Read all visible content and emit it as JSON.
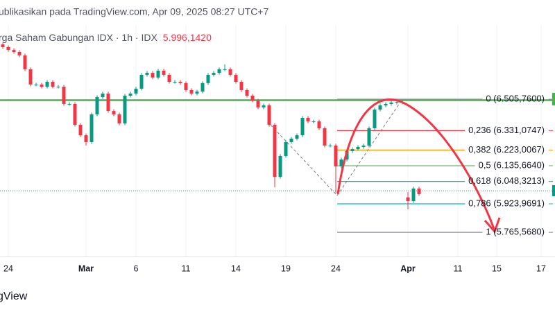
{
  "header": {
    "published": "ublikasikan pada TradingView.com, Apr 09, 2025 08:27 UTC+7",
    "symbol": "rga Saham Gabungan IDX · 1h · IDX",
    "footer": "gView"
  },
  "chart_data": {
    "type": "candlestick",
    "last_price": {
      "value": 5996.142,
      "label": "5.996,1420"
    },
    "up_color": "#089981",
    "down_color": "#f23645",
    "ylim": [
      5631,
      6922
    ],
    "horizontal_line": {
      "price": 6500,
      "color": "#4caf50"
    },
    "fib_levels": [
      {
        "label": "0 (6.505,7600)",
        "price": 6505.76,
        "color": "#9598a1"
      },
      {
        "label": "0,236 (6.331,0747)",
        "price": 6331.0747,
        "color": "#f23645"
      },
      {
        "label": "0,382 (6.223,0067)",
        "price": 6223.0067,
        "color": "#ff9800"
      },
      {
        "label": "0,5 (6.135,6640)",
        "price": 6135.664,
        "color": "#4caf50"
      },
      {
        "label": "0,618 (6.048,3213)",
        "price": 6048.3213,
        "color": "#089981"
      },
      {
        "label": "0,786 (5.923,9691)",
        "price": 5923.9691,
        "color": "#00bcd4"
      },
      {
        "label": "1 (5.765,5680)",
        "price": 5765.568,
        "color": "#787b86"
      }
    ],
    "categories": [
      null,
      "24",
      null,
      null,
      null,
      null,
      null,
      null,
      null,
      null,
      null,
      null,
      null,
      null,
      null,
      "Mar",
      null,
      null,
      null,
      null,
      null,
      null,
      null,
      null,
      "6",
      null,
      null,
      null,
      null,
      null,
      null,
      null,
      null,
      "11",
      null,
      null,
      null,
      null,
      null,
      null,
      null,
      null,
      "14",
      null,
      null,
      null,
      null,
      null,
      null,
      null,
      null,
      "19",
      null,
      null,
      null,
      null,
      null,
      null,
      null,
      null,
      "24",
      null,
      null,
      null,
      null,
      null,
      null,
      null,
      null,
      null,
      null,
      null,
      null,
      "Apr",
      null,
      null,
      null,
      null,
      null,
      null,
      null,
      null,
      "11",
      null,
      null,
      null,
      null,
      null,
      null,
      "15",
      null,
      null,
      null,
      null,
      null,
      null,
      null,
      "17",
      null,
      null
    ],
    "ohlc": [
      [
        6810,
        6820,
        6785,
        6795
      ],
      [
        6795,
        6805,
        6769,
        6779
      ],
      [
        6779,
        6789,
        6758,
        6768
      ],
      [
        6768,
        6778,
        6739,
        6749
      ],
      [
        6749,
        6759,
        6662,
        6672
      ],
      [
        6672,
        6682,
        6577,
        6587
      ],
      [
        6587,
        6597,
        6577,
        6587
      ],
      [
        6587,
        6597,
        6565,
        6575
      ],
      [
        6575,
        6612,
        6565,
        6602
      ],
      [
        6602,
        6612,
        6565,
        6575
      ],
      [
        6575,
        6585,
        6565,
        6575
      ],
      [
        6575,
        6585,
        6469,
        6479
      ],
      [
        6479,
        6489,
        6469,
        6479
      ],
      [
        6479,
        6489,
        6353,
        6363
      ],
      [
        6363,
        6373,
        6295,
        6305
      ],
      [
        6305,
        6315,
        6248,
        6267
      ],
      [
        6267,
        6431,
        6257,
        6421
      ],
      [
        6421,
        6527,
        6411,
        6517
      ],
      [
        6517,
        6547,
        6507,
        6537
      ],
      [
        6537,
        6547,
        6430,
        6440
      ],
      [
        6440,
        6450,
        6411,
        6421
      ],
      [
        6421,
        6431,
        6361,
        6371
      ],
      [
        6371,
        6535,
        6361,
        6525
      ],
      [
        6525,
        6547,
        6515,
        6537
      ],
      [
        6537,
        6574,
        6527,
        6564
      ],
      [
        6564,
        6651,
        6554,
        6641
      ],
      [
        6641,
        6662,
        6631,
        6652
      ],
      [
        6652,
        6662,
        6616,
        6626
      ],
      [
        6626,
        6674,
        6616,
        6664
      ],
      [
        6664,
        6674,
        6631,
        6641
      ],
      [
        6641,
        6651,
        6592,
        6602
      ],
      [
        6602,
        6612,
        6592,
        6602
      ],
      [
        6602,
        6612,
        6585,
        6595
      ],
      [
        6595,
        6605,
        6546,
        6556
      ],
      [
        6556,
        6566,
        6527,
        6537
      ],
      [
        6537,
        6558,
        6527,
        6548
      ],
      [
        6548,
        6605,
        6538,
        6595
      ],
      [
        6595,
        6651,
        6585,
        6641
      ],
      [
        6641,
        6662,
        6631,
        6652
      ],
      [
        6652,
        6682,
        6642,
        6672
      ],
      [
        6672,
        6700,
        6662,
        6672
      ],
      [
        6672,
        6682,
        6631,
        6641
      ],
      [
        6641,
        6651,
        6592,
        6602
      ],
      [
        6602,
        6612,
        6546,
        6556
      ],
      [
        6556,
        6566,
        6515,
        6525
      ],
      [
        6525,
        6535,
        6488,
        6498
      ],
      [
        6498,
        6508,
        6450,
        6460
      ],
      [
        6460,
        6481,
        6450,
        6471
      ],
      [
        6471,
        6481,
        6353,
        6363
      ],
      [
        6363,
        6373,
        6016,
        6074
      ],
      [
        6074,
        6200,
        6064,
        6190
      ],
      [
        6190,
        6277,
        6180,
        6267
      ],
      [
        6267,
        6296,
        6257,
        6286
      ],
      [
        6286,
        6315,
        6276,
        6305
      ],
      [
        6305,
        6412,
        6295,
        6402
      ],
      [
        6402,
        6412,
        6372,
        6382
      ],
      [
        6382,
        6392,
        6372,
        6382
      ],
      [
        6382,
        6392,
        6334,
        6344
      ],
      [
        6344,
        6354,
        6238,
        6248
      ],
      [
        6248,
        6258,
        6238,
        6248
      ],
      [
        6248,
        6258,
        5985,
        6132
      ],
      [
        6132,
        6180,
        6122,
        6170
      ],
      [
        6170,
        6227,
        6160,
        6217
      ],
      [
        6217,
        6238,
        6207,
        6228
      ],
      [
        6228,
        6250,
        6218,
        6240
      ],
      [
        6240,
        6258,
        6230,
        6248
      ],
      [
        6248,
        6354,
        6238,
        6344
      ],
      [
        6344,
        6458,
        6334,
        6448
      ],
      [
        6448,
        6481,
        6438,
        6471
      ],
      [
        6471,
        6489,
        6461,
        6479
      ],
      [
        6479,
        6497,
        6469,
        6487
      ],
      [
        6487,
        6500,
        6477,
        6490
      ],
      [
        6490,
        6500,
        6477,
        6487
      ],
      [
        5960,
        5990,
        5893,
        5939
      ],
      [
        5939,
        6019,
        5929,
        6009
      ],
      [
        6009,
        6019,
        5968,
        5978
      ],
      null,
      null,
      null,
      null,
      null,
      null,
      null,
      null,
      null,
      null,
      null,
      null,
      null,
      null,
      null,
      null,
      null,
      null,
      null,
      null,
      null,
      null,
      null,
      null
    ]
  }
}
